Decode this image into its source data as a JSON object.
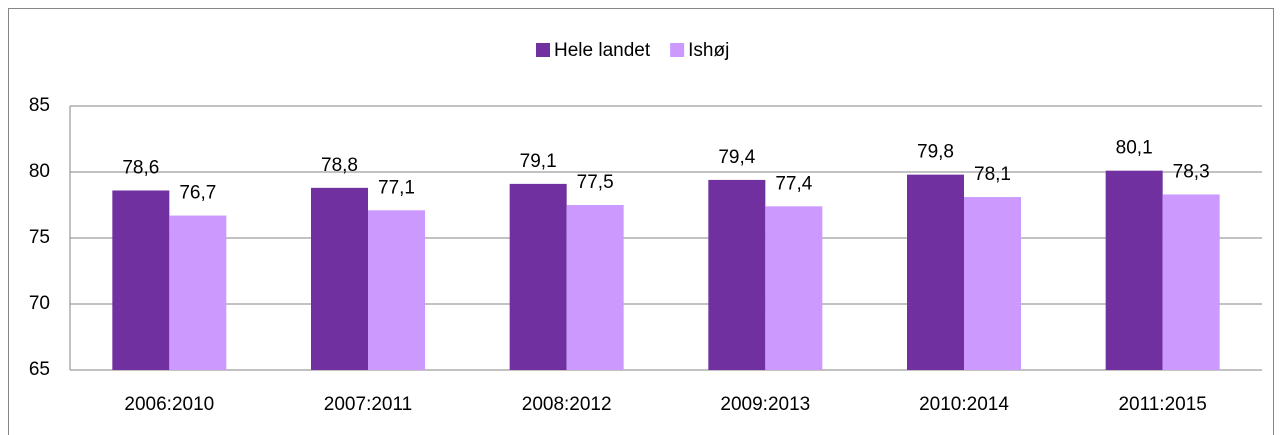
{
  "chart_data": {
    "type": "bar",
    "categories": [
      "2006:2010",
      "2007:2011",
      "2008:2012",
      "2009:2013",
      "2010:2014",
      "2011:2015"
    ],
    "series": [
      {
        "name": "Hele landet",
        "color": "#7030a0",
        "values": [
          78.6,
          78.8,
          79.1,
          79.4,
          79.8,
          80.1
        ],
        "value_labels": [
          "78,6",
          "78,8",
          "79,1",
          "79,4",
          "79,8",
          "80,1"
        ]
      },
      {
        "name": "Ishøj",
        "color": "#cc99ff",
        "values": [
          76.7,
          77.1,
          77.5,
          77.4,
          78.1,
          78.3
        ],
        "value_labels": [
          "76,7",
          "77,1",
          "77,5",
          "77,4",
          "78,1",
          "78,3"
        ]
      }
    ],
    "ylim": [
      65,
      85
    ],
    "yticks": [
      65,
      70,
      75,
      80,
      85
    ],
    "grid": true,
    "legend": "top"
  }
}
